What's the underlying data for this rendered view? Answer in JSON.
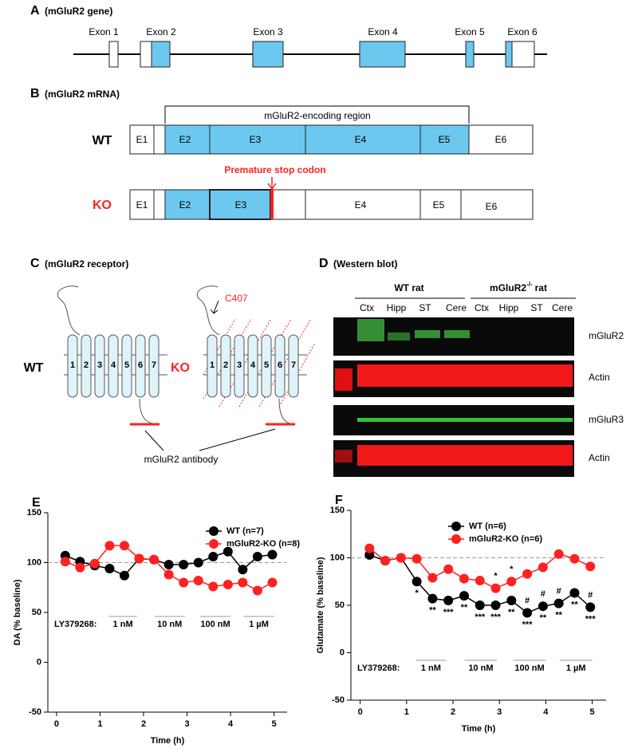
{
  "panels": {
    "a": {
      "letter": "A",
      "title": "(mGluR2 gene)",
      "exons": [
        "Exon 1",
        "Exon 2",
        "Exon 3",
        "Exon 4",
        "Exon 5",
        "Exon 6"
      ]
    },
    "b": {
      "letter": "B",
      "title": "(mGluR2 mRNA)",
      "region": "mGluR2-encoding region",
      "wt": "WT",
      "ko": "KO",
      "stop": "Premature stop codon",
      "wt_exons": [
        "E1",
        "E2",
        "E3",
        "E4",
        "E5",
        "E6"
      ],
      "ko_exons": [
        "E1",
        "E2",
        "E3",
        "E4",
        "E5",
        "E6"
      ]
    },
    "c": {
      "letter": "C",
      "title": "(mGluR2 receptor)",
      "wt": "WT",
      "ko": "KO",
      "site": "C407",
      "antibody": "mGluR2 antibody",
      "helices": [
        "1",
        "2",
        "3",
        "4",
        "5",
        "6",
        "7"
      ]
    },
    "d": {
      "letter": "D",
      "title": "(Western blot)",
      "group1": "WT rat",
      "group2": "mGluR2",
      "group2_sup": "-/-",
      "group2_tail": "rat",
      "lanes": [
        "Ctx",
        "Hipp",
        "ST",
        "Cere",
        "Ctx",
        "Hipp",
        "ST",
        "Cere"
      ],
      "rows": [
        "mGluR2",
        "Actin",
        "mGluR3",
        "Actin"
      ]
    }
  },
  "chart_data": [
    {
      "type": "line",
      "letter": "E",
      "x_label": "Time (h)",
      "y_label": "DA (% baseline)",
      "x": [
        0.2,
        0.54,
        0.88,
        1.22,
        1.56,
        1.9,
        2.24,
        2.58,
        2.92,
        3.26,
        3.6,
        3.94,
        4.28,
        4.62,
        4.96
      ],
      "series": [
        {
          "name": "WT (n=7)",
          "color": "#000000",
          "values": [
            107,
            101,
            97,
            94,
            87,
            104,
            103,
            98,
            98,
            100,
            106,
            111,
            93,
            106,
            108
          ]
        },
        {
          "name": "mGluR2-KO (n=8)",
          "color": "#ff2020",
          "values": [
            101,
            95,
            99,
            117,
            117,
            104,
            103,
            88,
            80,
            82,
            76,
            78,
            80,
            72,
            80
          ]
        }
      ],
      "baseline": 100,
      "drug": "LY379268:",
      "doses": [
        "1 nM",
        "10 nM",
        "100 nM",
        "1 µM"
      ],
      "xlim": [
        -0.2,
        5.3
      ],
      "xticks": [
        0,
        1,
        2,
        3,
        4,
        5
      ],
      "ylim": [
        -50,
        150
      ],
      "yticks": [
        -50,
        0,
        50,
        100,
        150
      ]
    },
    {
      "type": "line",
      "letter": "F",
      "x_label": "Time (h)",
      "y_label": "Glutamate (% baseline)",
      "x": [
        0.2,
        0.54,
        0.88,
        1.22,
        1.56,
        1.9,
        2.24,
        2.58,
        2.92,
        3.26,
        3.6,
        3.94,
        4.28,
        4.62,
        4.96
      ],
      "series": [
        {
          "name": "WT (n=6)",
          "color": "#000000",
          "values": [
            103,
            97,
            100,
            75,
            57,
            55,
            60,
            50,
            50,
            55,
            42,
            49,
            52,
            63,
            48
          ],
          "annotations_below": [
            null,
            null,
            null,
            "*",
            "**",
            "***",
            "**",
            "***",
            "***",
            "**",
            "***",
            "**",
            "**",
            "**",
            "***"
          ],
          "annotations_above": [
            null,
            null,
            null,
            null,
            null,
            null,
            null,
            null,
            null,
            null,
            "#",
            "#",
            "#",
            null,
            "#"
          ]
        },
        {
          "name": "mGluR2-KO (n=6)",
          "color": "#ff2020",
          "values": [
            110,
            97,
            100,
            99,
            79,
            88,
            78,
            76,
            68,
            75,
            83,
            90,
            104,
            99,
            91
          ],
          "annotations_above": [
            null,
            null,
            null,
            null,
            null,
            null,
            null,
            null,
            "*",
            "*",
            null,
            null,
            null,
            null,
            null
          ]
        }
      ],
      "baseline": 100,
      "drug": "LY379268:",
      "doses": [
        "1 nM",
        "10 nM",
        "100 nM",
        "1 µM"
      ],
      "xlim": [
        -0.2,
        5.3
      ],
      "xticks": [
        0,
        1,
        2,
        3,
        4,
        5
      ],
      "ylim": [
        -50,
        150
      ],
      "yticks": [
        -50,
        0,
        50,
        100,
        150
      ]
    }
  ]
}
